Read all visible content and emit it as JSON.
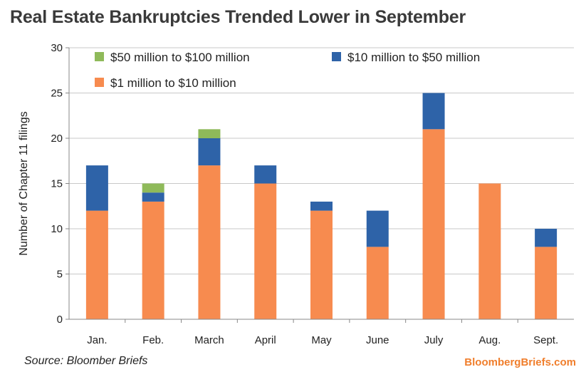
{
  "chart_data": {
    "type": "bar",
    "stacked": true,
    "title": "Real Estate Bankruptcies Trended Lower in September",
    "ylabel": "Number of Chapter 11 filings",
    "xlabel": "",
    "ylim": [
      0,
      30
    ],
    "yticks": [
      0,
      5,
      10,
      15,
      20,
      25,
      30
    ],
    "grid": true,
    "legend_position": "top",
    "categories": [
      "Jan.",
      "Feb.",
      "March",
      "April",
      "May",
      "June",
      "July",
      "Aug.",
      "Sept."
    ],
    "series": [
      {
        "name": "$1 million to $10 million",
        "color": "#f78b4f",
        "values": [
          12,
          13,
          17,
          15,
          12,
          8,
          21,
          15,
          8
        ]
      },
      {
        "name": "$10 million to $50 million",
        "color": "#2e63a8",
        "values": [
          5,
          1,
          3,
          2,
          1,
          4,
          4,
          0,
          2
        ]
      },
      {
        "name": "$50 million to $100 million",
        "color": "#8fba5a",
        "values": [
          0,
          1,
          1,
          0,
          0,
          0,
          0,
          0,
          0
        ]
      }
    ]
  },
  "footer": {
    "source": "Source: Bloomber Briefs",
    "site": "BloombergBriefs.com"
  }
}
